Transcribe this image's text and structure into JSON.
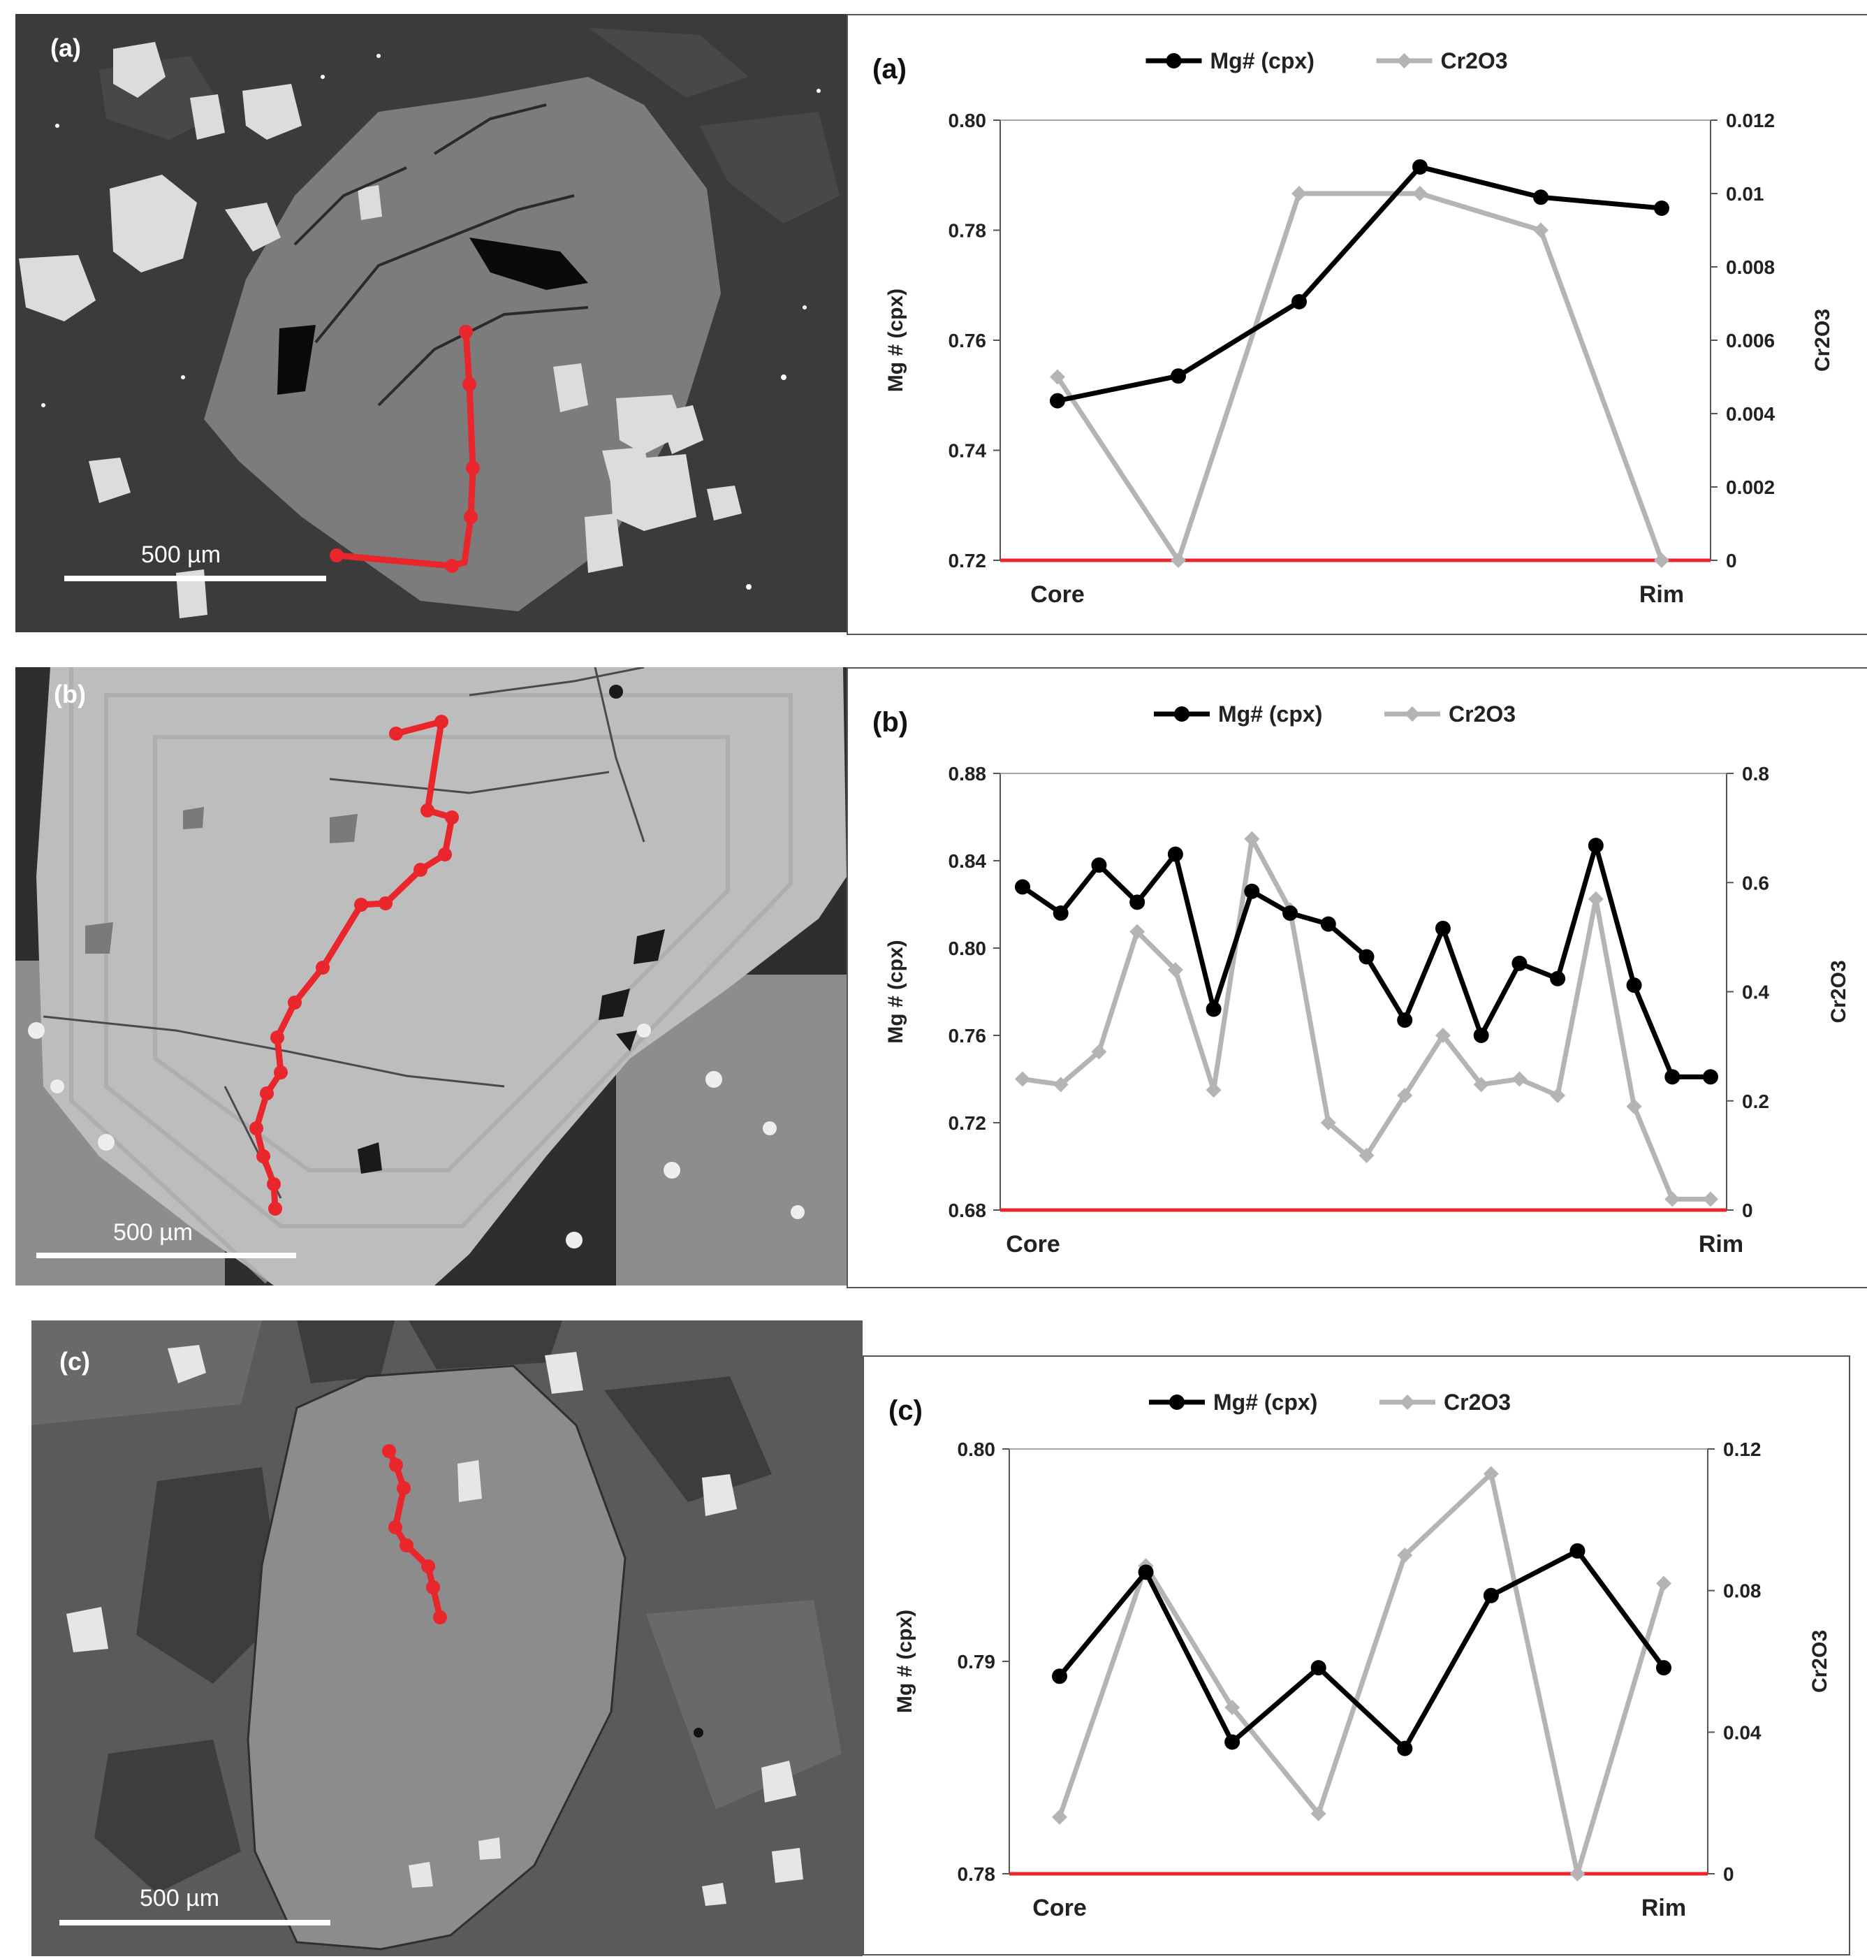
{
  "panels": [
    {
      "id": "a",
      "image_label": "(a)",
      "scale_bar": "500 µm",
      "accent": "#e8262b",
      "chart": {
        "panel_label": "(a)"
      }
    },
    {
      "id": "b",
      "image_label": "(b)",
      "scale_bar": "500 µm",
      "accent": "#e8262b",
      "chart": {
        "panel_label": "(b)"
      }
    },
    {
      "id": "c",
      "image_label": "(c)",
      "scale_bar": "500 µm",
      "accent": "#e8262b",
      "chart": {
        "panel_label": "(c)"
      }
    }
  ],
  "chart_data": [
    {
      "type": "line",
      "title": "",
      "xlabel": "",
      "x_tick_labels": [
        "Core",
        "Rim"
      ],
      "ylabel": "Mg # (cpx)",
      "ylabel2": "Cr2O3",
      "ylim": [
        0.72,
        0.8
      ],
      "y_ticks": [
        "0.72",
        "0.74",
        "0.76",
        "0.78",
        "0.80"
      ],
      "y2lim": [
        0,
        0.012
      ],
      "y2_ticks": [
        "0",
        "0.002",
        "0.004",
        "0.006",
        "0.008",
        "0.01",
        "0.012"
      ],
      "legend_position": "top-center",
      "grid": false,
      "series": [
        {
          "name": "Mg# (cpx)",
          "axis": "left",
          "color": "#000000",
          "x": [
            1,
            2,
            3,
            4,
            5,
            6
          ],
          "values": [
            0.749,
            0.7535,
            0.767,
            0.7915,
            0.786,
            0.784
          ]
        },
        {
          "name": "Cr2O3",
          "axis": "right",
          "color": "#b4b4b4",
          "x": [
            1,
            2,
            3,
            4,
            5,
            6
          ],
          "values": [
            0.005,
            0.0,
            0.01,
            0.01,
            0.009,
            0.0
          ]
        }
      ]
    },
    {
      "type": "line",
      "title": "",
      "xlabel": "",
      "x_tick_labels": [
        "Core",
        "Rim"
      ],
      "ylabel": "Mg # (cpx)",
      "ylabel2": "Cr2O3",
      "ylim": [
        0.68,
        0.88
      ],
      "y_ticks": [
        "0.68",
        "0.72",
        "0.76",
        "0.80",
        "0.84",
        "0.88"
      ],
      "y2lim": [
        0,
        0.8
      ],
      "y2_ticks": [
        "0",
        "0.2",
        "0.4",
        "0.6",
        "0.8"
      ],
      "legend_position": "top-center",
      "grid": false,
      "series": [
        {
          "name": "Mg# (cpx)",
          "axis": "left",
          "color": "#000000",
          "x": [
            1,
            2,
            3,
            4,
            5,
            6,
            7,
            8,
            9,
            10,
            11,
            12,
            13,
            14,
            15,
            16,
            17,
            18,
            19
          ],
          "values": [
            0.828,
            0.816,
            0.838,
            0.821,
            0.843,
            0.772,
            0.826,
            0.816,
            0.811,
            0.796,
            0.767,
            0.809,
            0.76,
            0.793,
            0.786,
            0.847,
            0.783,
            0.741,
            0.741
          ]
        },
        {
          "name": "Cr2O3",
          "axis": "right",
          "color": "#b4b4b4",
          "x": [
            1,
            2,
            3,
            4,
            5,
            6,
            7,
            8,
            9,
            10,
            11,
            12,
            13,
            14,
            15,
            16,
            17,
            18,
            19
          ],
          "values": [
            0.24,
            0.23,
            0.29,
            0.51,
            0.44,
            0.22,
            0.68,
            0.55,
            0.16,
            0.1,
            0.21,
            0.32,
            0.23,
            0.24,
            0.21,
            0.57,
            0.19,
            0.02,
            0.02
          ]
        }
      ]
    },
    {
      "type": "line",
      "title": "",
      "xlabel": "",
      "x_tick_labels": [
        "Core",
        "Rim"
      ],
      "ylabel": "Mg # (cpx)",
      "ylabel2": "Cr2O3",
      "ylim": [
        0.78,
        0.8
      ],
      "y_ticks": [
        "0.78",
        "0.79",
        "0.80"
      ],
      "y2lim": [
        0,
        0.12
      ],
      "y2_ticks": [
        "0",
        "0.04",
        "0.08",
        "0.12"
      ],
      "legend_position": "top-center",
      "grid": false,
      "series": [
        {
          "name": "Mg# (cpx)",
          "axis": "left",
          "color": "#000000",
          "x": [
            1,
            2,
            3,
            4,
            5,
            6,
            7,
            8
          ],
          "values": [
            0.7893,
            0.7942,
            0.7862,
            0.7897,
            0.7859,
            0.7931,
            0.7952,
            0.7897
          ]
        },
        {
          "name": "Cr2O3",
          "axis": "right",
          "color": "#b4b4b4",
          "x": [
            1,
            2,
            3,
            4,
            5,
            6,
            7,
            8
          ],
          "values": [
            0.016,
            0.087,
            0.047,
            0.017,
            0.09,
            0.113,
            0.0,
            0.082
          ]
        }
      ]
    }
  ]
}
